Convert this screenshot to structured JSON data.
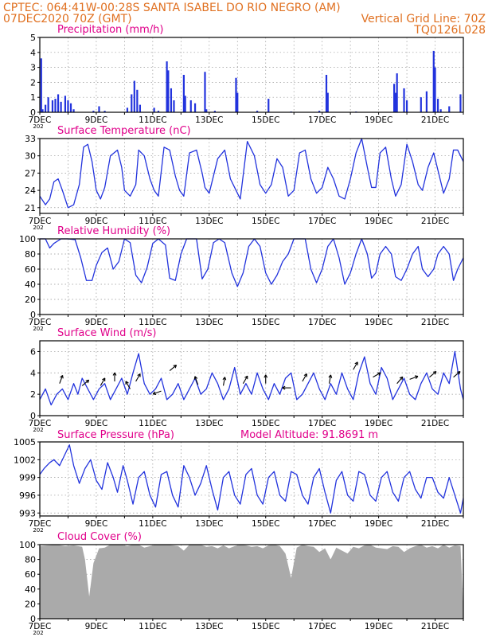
{
  "header": {
    "line1_left": "CPTEC:   064:41W-00:28S   SANTA ISABEL DO RIO NEGRO (AM)",
    "line2_left": "07DEC2020 70Z (GMT)",
    "line2_right": "Vertical Grid Line: 70Z",
    "line3_right": "TQ0126L028"
  },
  "colors": {
    "header": "#e07020",
    "panel_title": "#e0008a",
    "series": "#2233dd",
    "cloud": "#aaaaaa",
    "arrow": "#000000",
    "grid": "#999999"
  },
  "x_axis": {
    "labels": [
      "7DEC",
      "9DEC",
      "11DEC",
      "13DEC",
      "15DEC",
      "17DEC",
      "19DEC",
      "21DEC"
    ],
    "year_label": "202",
    "days": 15
  },
  "chart_data": [
    {
      "type": "bar",
      "title": "Precipitation (mm/h)",
      "ylim": [
        0,
        5
      ],
      "yticks": [
        0,
        1,
        2,
        3,
        4,
        5
      ],
      "bars": [
        [
          0.05,
          3.6
        ],
        [
          0.1,
          0.2
        ],
        [
          0.2,
          0.5
        ],
        [
          0.3,
          1.0
        ],
        [
          0.45,
          0.8
        ],
        [
          0.55,
          0.9
        ],
        [
          0.65,
          1.2
        ],
        [
          0.75,
          0.7
        ],
        [
          0.9,
          1.1
        ],
        [
          1.0,
          0.8
        ],
        [
          1.1,
          0.6
        ],
        [
          1.2,
          0.2
        ],
        [
          1.9,
          0.1
        ],
        [
          2.1,
          0.4
        ],
        [
          2.3,
          0.1
        ],
        [
          3.1,
          0.3
        ],
        [
          3.25,
          1.2
        ],
        [
          3.35,
          2.1
        ],
        [
          3.45,
          1.5
        ],
        [
          3.55,
          0.5
        ],
        [
          4.05,
          0.3
        ],
        [
          4.2,
          0.1
        ],
        [
          4.5,
          3.4
        ],
        [
          4.55,
          2.8
        ],
        [
          4.65,
          1.6
        ],
        [
          4.75,
          0.8
        ],
        [
          5.1,
          2.5
        ],
        [
          5.15,
          1.1
        ],
        [
          5.35,
          0.8
        ],
        [
          5.5,
          0.6
        ],
        [
          5.85,
          2.7
        ],
        [
          5.9,
          0.2
        ],
        [
          6.2,
          0.1
        ],
        [
          6.95,
          2.3
        ],
        [
          7.0,
          1.3
        ],
        [
          7.7,
          0.1
        ],
        [
          8.1,
          0.9
        ],
        [
          8.9,
          0.05
        ],
        [
          9.9,
          0.1
        ],
        [
          10.15,
          2.5
        ],
        [
          10.2,
          1.3
        ],
        [
          11.2,
          0.05
        ],
        [
          12.55,
          1.9
        ],
        [
          12.6,
          1.3
        ],
        [
          12.65,
          2.6
        ],
        [
          12.9,
          1.6
        ],
        [
          13.0,
          0.8
        ],
        [
          13.5,
          1.0
        ],
        [
          13.7,
          1.4
        ],
        [
          13.95,
          4.1
        ],
        [
          14.0,
          3.0
        ],
        [
          14.1,
          0.9
        ],
        [
          14.2,
          0.2
        ],
        [
          14.5,
          0.4
        ],
        [
          14.9,
          1.2
        ]
      ]
    },
    {
      "type": "line",
      "title": "Surface Temperature (nC)",
      "ylim": [
        20,
        33
      ],
      "yticks": [
        21,
        24,
        27,
        30,
        33
      ],
      "x": [
        0,
        0.2,
        0.35,
        0.5,
        0.65,
        0.8,
        1.0,
        1.2,
        1.4,
        1.55,
        1.7,
        1.85,
        2.0,
        2.15,
        2.3,
        2.5,
        2.75,
        2.9,
        3.0,
        3.2,
        3.4,
        3.5,
        3.7,
        3.9,
        4.05,
        4.2,
        4.4,
        4.6,
        4.8,
        4.95,
        5.1,
        5.3,
        5.55,
        5.75,
        5.85,
        6.0,
        6.3,
        6.55,
        6.75,
        6.95,
        7.1,
        7.35,
        7.6,
        7.8,
        8.0,
        8.2,
        8.4,
        8.6,
        8.8,
        9.0,
        9.2,
        9.4,
        9.6,
        9.8,
        10.0,
        10.2,
        10.4,
        10.6,
        10.8,
        11.0,
        11.2,
        11.4,
        11.6,
        11.75,
        11.9,
        12.05,
        12.25,
        12.45,
        12.6,
        12.8,
        13.0,
        13.2,
        13.4,
        13.55,
        13.75,
        13.95,
        14.1,
        14.3,
        14.5,
        14.65,
        14.8,
        15.0
      ],
      "values": [
        23,
        21.5,
        22.5,
        25.5,
        26,
        24,
        21,
        21.5,
        25,
        31.5,
        32,
        29,
        24,
        22.5,
        24.5,
        30,
        31,
        28,
        24,
        23,
        25,
        31,
        30,
        26,
        24,
        23,
        31.5,
        31,
        26.5,
        24,
        23,
        30.5,
        31,
        27,
        24.5,
        23.5,
        29.5,
        31,
        26,
        24,
        22.5,
        32.5,
        30,
        25,
        23.5,
        25,
        29.5,
        28,
        23,
        24,
        30.5,
        31,
        26,
        23.5,
        24.5,
        28,
        26,
        23,
        22.5,
        26,
        30.5,
        33,
        28,
        24.5,
        24.5,
        30.5,
        31.5,
        26,
        23,
        25,
        32,
        29,
        25,
        24,
        28,
        30.5,
        27.5,
        23.5,
        26,
        31,
        31,
        29
      ]
    },
    {
      "type": "line",
      "title": "Relative Humidity (%)",
      "ylim": [
        0,
        100
      ],
      "yticks": [
        0,
        20,
        40,
        60,
        80,
        100
      ],
      "x": [
        0,
        0.2,
        0.35,
        0.5,
        0.75,
        1.0,
        1.25,
        1.45,
        1.65,
        1.85,
        2.0,
        2.2,
        2.4,
        2.6,
        2.8,
        3.0,
        3.2,
        3.4,
        3.6,
        3.8,
        4.0,
        4.2,
        4.45,
        4.6,
        4.8,
        5.0,
        5.2,
        5.4,
        5.55,
        5.75,
        5.95,
        6.15,
        6.35,
        6.55,
        6.8,
        7.0,
        7.2,
        7.4,
        7.6,
        7.8,
        8.0,
        8.2,
        8.4,
        8.6,
        8.8,
        9.0,
        9.2,
        9.4,
        9.6,
        9.8,
        10.0,
        10.2,
        10.4,
        10.6,
        10.8,
        11.0,
        11.2,
        11.4,
        11.6,
        11.75,
        11.9,
        12.05,
        12.25,
        12.45,
        12.6,
        12.8,
        13.0,
        13.2,
        13.4,
        13.55,
        13.75,
        13.95,
        14.1,
        14.3,
        14.5,
        14.65,
        14.8,
        15.0
      ],
      "values": [
        100,
        100,
        88,
        94,
        100,
        100,
        99,
        75,
        45,
        45,
        65,
        82,
        88,
        60,
        70,
        100,
        95,
        52,
        42,
        62,
        94,
        100,
        92,
        48,
        45,
        80,
        100,
        100,
        100,
        47,
        60,
        95,
        100,
        95,
        55,
        37,
        55,
        90,
        100,
        90,
        55,
        40,
        52,
        70,
        80,
        100,
        100,
        100,
        60,
        42,
        60,
        90,
        100,
        75,
        40,
        55,
        80,
        100,
        80,
        48,
        55,
        80,
        90,
        80,
        50,
        45,
        60,
        80,
        90,
        60,
        50,
        60,
        80,
        90,
        80,
        45,
        60,
        75
      ]
    },
    {
      "type": "line",
      "title": "Surface Wind (m/s)",
      "ylim": [
        0,
        7
      ],
      "yticks": [
        0,
        2,
        4,
        6
      ],
      "x": [
        0,
        0.2,
        0.4,
        0.6,
        0.8,
        1.0,
        1.2,
        1.35,
        1.5,
        1.7,
        1.9,
        2.1,
        2.3,
        2.5,
        2.7,
        2.9,
        3.1,
        3.3,
        3.5,
        3.7,
        3.9,
        4.1,
        4.3,
        4.5,
        4.7,
        4.9,
        5.1,
        5.3,
        5.5,
        5.7,
        5.9,
        6.1,
        6.3,
        6.5,
        6.7,
        6.9,
        7.1,
        7.3,
        7.5,
        7.7,
        7.9,
        8.1,
        8.3,
        8.5,
        8.7,
        8.9,
        9.1,
        9.3,
        9.5,
        9.7,
        9.9,
        10.1,
        10.3,
        10.5,
        10.7,
        10.9,
        11.1,
        11.3,
        11.5,
        11.7,
        11.9,
        12.1,
        12.3,
        12.5,
        12.7,
        12.9,
        13.1,
        13.3,
        13.5,
        13.7,
        13.9,
        14.1,
        14.3,
        14.5,
        14.7,
        14.9,
        15.0
      ],
      "values": [
        1.5,
        2.5,
        1.0,
        2.0,
        2.5,
        1.5,
        3.0,
        2.0,
        3.5,
        2.5,
        1.5,
        2.5,
        3.0,
        1.5,
        2.5,
        3.5,
        2.0,
        4.0,
        5.8,
        3.0,
        2.0,
        2.5,
        3.5,
        1.5,
        2.0,
        3.0,
        1.5,
        2.5,
        3.5,
        2.0,
        2.5,
        4.0,
        3.0,
        1.5,
        2.5,
        4.5,
        2.0,
        3.0,
        2.0,
        4.0,
        2.5,
        1.5,
        3.0,
        2.0,
        3.5,
        4.0,
        1.5,
        2.0,
        3.0,
        4.0,
        2.5,
        1.5,
        3.0,
        2.0,
        4.0,
        2.5,
        1.5,
        4.0,
        5.5,
        3.0,
        2.0,
        4.5,
        3.5,
        1.5,
        2.5,
        3.5,
        2.0,
        1.5,
        3.0,
        4.0,
        2.5,
        2.0,
        4.0,
        3.0,
        6.0,
        2.5,
        1.5
      ]
    },
    {
      "type": "line",
      "title": "Surface Pressure (hPa)",
      "annotation": "Model Altitude: 91.8691 m",
      "ylim": [
        992.5,
        1005
      ],
      "yticks": [
        993,
        996,
        999,
        1002,
        1005
      ],
      "x": [
        0,
        0.15,
        0.35,
        0.5,
        0.7,
        0.85,
        1.05,
        1.2,
        1.4,
        1.6,
        1.8,
        2.0,
        2.2,
        2.4,
        2.6,
        2.75,
        2.95,
        3.1,
        3.3,
        3.5,
        3.7,
        3.9,
        4.1,
        4.3,
        4.5,
        4.7,
        4.9,
        5.1,
        5.3,
        5.5,
        5.7,
        5.9,
        6.1,
        6.3,
        6.5,
        6.7,
        6.9,
        7.1,
        7.3,
        7.5,
        7.7,
        7.9,
        8.1,
        8.3,
        8.5,
        8.7,
        8.9,
        9.1,
        9.3,
        9.5,
        9.7,
        9.9,
        10.1,
        10.3,
        10.5,
        10.7,
        10.9,
        11.1,
        11.3,
        11.5,
        11.7,
        11.9,
        12.1,
        12.3,
        12.5,
        12.7,
        12.9,
        13.1,
        13.3,
        13.5,
        13.7,
        13.9,
        14.1,
        14.3,
        14.5,
        14.7,
        14.9,
        15.0
      ],
      "values": [
        999.5,
        1000.5,
        1001.5,
        1002,
        1001,
        1002.5,
        1004.5,
        1001,
        998,
        1000.5,
        1002,
        998.5,
        997,
        1001.5,
        999,
        996.5,
        1001,
        998.5,
        994.5,
        999,
        1000,
        996,
        994,
        999.5,
        1000,
        996,
        994,
        1001,
        999,
        996,
        998,
        1001,
        997,
        993.5,
        999,
        1000,
        996,
        994.5,
        999.5,
        1000.5,
        996,
        994.5,
        999,
        1000,
        996,
        995,
        1000,
        999.5,
        996,
        994.5,
        999,
        1000.5,
        996.5,
        993,
        998.5,
        1000,
        996,
        995,
        1000,
        999.5,
        996,
        995,
        999,
        1000,
        996.5,
        995,
        999,
        1000,
        997,
        995.5,
        999,
        999,
        996.5,
        995.5,
        999,
        996,
        993,
        995.5
      ]
    },
    {
      "type": "area",
      "title": "Cloud Cover (%)",
      "ylim": [
        0,
        100
      ],
      "yticks": [
        0,
        20,
        40,
        60,
        80,
        100
      ],
      "x": [
        0,
        0.3,
        0.6,
        0.9,
        1.2,
        1.5,
        1.6,
        1.75,
        1.9,
        2.1,
        2.3,
        2.5,
        2.7,
        2.9,
        3.1,
        3.3,
        3.5,
        3.7,
        3.9,
        4.1,
        4.3,
        4.5,
        4.7,
        4.9,
        5.1,
        5.3,
        5.5,
        5.7,
        5.9,
        6.1,
        6.3,
        6.5,
        6.7,
        6.9,
        7.1,
        7.3,
        7.5,
        7.7,
        7.9,
        8.1,
        8.3,
        8.5,
        8.7,
        8.9,
        9.1,
        9.3,
        9.5,
        9.7,
        9.9,
        10.1,
        10.3,
        10.5,
        10.7,
        10.9,
        11.1,
        11.3,
        11.5,
        11.7,
        11.9,
        12.1,
        12.3,
        12.5,
        12.7,
        12.9,
        13.1,
        13.3,
        13.5,
        13.7,
        13.9,
        14.1,
        14.3,
        14.5,
        14.7,
        14.9,
        15.0
      ],
      "values": [
        98,
        99,
        100,
        98,
        99,
        97,
        80,
        30,
        75,
        95,
        96,
        100,
        100,
        100,
        98,
        100,
        100,
        96,
        98,
        100,
        100,
        100,
        99,
        98,
        92,
        100,
        100,
        100,
        97,
        98,
        95,
        99,
        95,
        98,
        100,
        99,
        97,
        98,
        95,
        99,
        100,
        98,
        88,
        55,
        96,
        100,
        98,
        97,
        90,
        95,
        80,
        96,
        92,
        88,
        97,
        95,
        99,
        100,
        96,
        95,
        94,
        98,
        97,
        90,
        95,
        98,
        100,
        96,
        98,
        95,
        100,
        96,
        99,
        98,
        10
      ]
    }
  ],
  "wind_arrows": [
    [
      0.7,
      3.0,
      290
    ],
    [
      1.5,
      2.8,
      320
    ],
    [
      2.15,
      2.8,
      300
    ],
    [
      2.65,
      3.2,
      270
    ],
    [
      3.2,
      2.5,
      240
    ],
    [
      3.4,
      3.2,
      300
    ],
    [
      4.3,
      2.3,
      160
    ],
    [
      4.6,
      4.2,
      320
    ],
    [
      5.6,
      2.9,
      250
    ],
    [
      6.5,
      2.8,
      280
    ],
    [
      7.2,
      3.0,
      300
    ],
    [
      8.0,
      3.0,
      270
    ],
    [
      8.9,
      2.6,
      180
    ],
    [
      9.3,
      3.2,
      300
    ],
    [
      10.25,
      3.0,
      280
    ],
    [
      11.1,
      4.3,
      300
    ],
    [
      11.8,
      3.6,
      330
    ],
    [
      12.65,
      3.0,
      310
    ],
    [
      13.1,
      3.4,
      340
    ],
    [
      13.8,
      3.6,
      320
    ],
    [
      14.65,
      3.6,
      320
    ]
  ]
}
